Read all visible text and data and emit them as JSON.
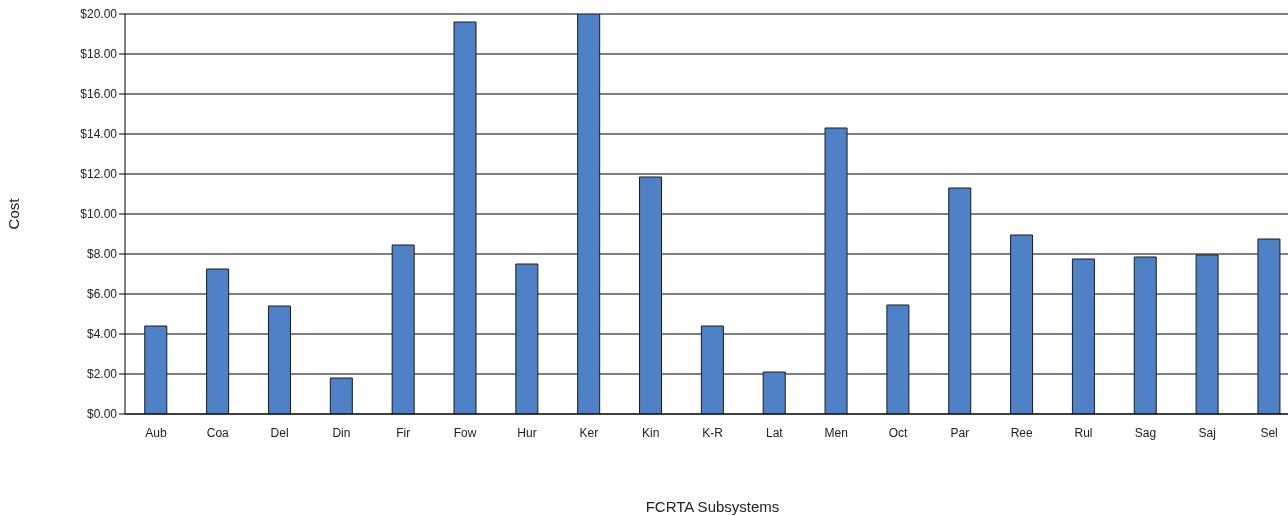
{
  "chart_data": {
    "type": "bar",
    "xlabel": "FCRTA Subsystems",
    "ylabel": "Cost",
    "categories": [
      "Aub",
      "Coa",
      "Del",
      "Din",
      "Fir",
      "Fow",
      "Hur",
      "Ker",
      "Kin",
      "K-R",
      "Lat",
      "Men",
      "Oct",
      "Par",
      "Ree",
      "Rul",
      "Sag",
      "Saj",
      "Sel"
    ],
    "values": [
      4.4,
      7.25,
      5.4,
      1.8,
      8.45,
      19.6,
      7.5,
      20.0,
      11.85,
      4.4,
      2.1,
      14.3,
      5.45,
      11.3,
      8.95,
      7.75,
      7.85,
      7.95,
      8.75
    ],
    "color": "#4f81c7",
    "ylim": [
      0,
      20
    ],
    "yticks": [
      {
        "value": 0,
        "label": "$0.00"
      },
      {
        "value": 2,
        "label": "$2.00"
      },
      {
        "value": 4,
        "label": "$4.00"
      },
      {
        "value": 6,
        "label": "$6.00"
      },
      {
        "value": 8,
        "label": "$8.00"
      },
      {
        "value": 10,
        "label": "$10.00"
      },
      {
        "value": 12,
        "label": "$12.00"
      },
      {
        "value": 14,
        "label": "$14.00"
      },
      {
        "value": 16,
        "label": "$16.00"
      },
      {
        "value": 18,
        "label": "$18.00"
      },
      {
        "value": 20,
        "label": "$20.00"
      }
    ],
    "grid": "y"
  }
}
